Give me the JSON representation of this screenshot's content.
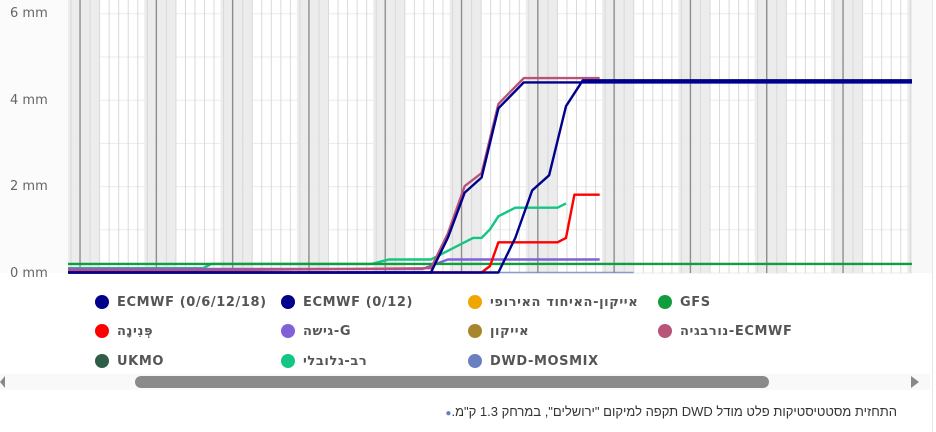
{
  "chart_data": {
    "type": "line",
    "title": "",
    "xlabel": "",
    "ylabel": "",
    "y_unit": "mm",
    "y_ticks": [
      "0 mm",
      "2 mm",
      "4 mm",
      "6 mm"
    ],
    "ylim": [
      0,
      6
    ],
    "grid": true,
    "legend_position": "bottom",
    "x_note": "time axis (hourly), shaded night bands, dark lines at day boundaries; no visible x tick labels",
    "series": [
      {
        "name": "ECMWF (0/6/12/18)",
        "color": "#00008b",
        "points": [
          [
            0,
            0
          ],
          [
            0.51,
            0
          ],
          [
            0.53,
            0.8
          ],
          [
            0.55,
            1.9
          ],
          [
            0.57,
            2.25
          ],
          [
            0.59,
            3.85
          ],
          [
            0.61,
            4.45
          ],
          [
            1.0,
            4.45
          ]
        ]
      },
      {
        "name": "ECMWF (0/12)",
        "color": "#00008b",
        "points": [
          [
            0,
            0
          ],
          [
            0.43,
            0
          ],
          [
            0.45,
            0.8
          ],
          [
            0.47,
            1.85
          ],
          [
            0.49,
            2.2
          ],
          [
            0.51,
            3.8
          ],
          [
            0.54,
            4.4
          ],
          [
            1.0,
            4.4
          ]
        ]
      },
      {
        "name": "אייקון-האיחוד האירופי",
        "color": "#f0a500",
        "points": []
      },
      {
        "name": "GFS",
        "color": "#109d3e",
        "points": [
          [
            0,
            0.2
          ],
          [
            1.0,
            0.2
          ]
        ]
      },
      {
        "name": "פְּנִינָה",
        "color": "#ff0000",
        "points": [
          [
            0,
            0
          ],
          [
            0.49,
            0
          ],
          [
            0.5,
            0.15
          ],
          [
            0.51,
            0.7
          ],
          [
            0.58,
            0.7
          ],
          [
            0.59,
            0.8
          ],
          [
            0.6,
            1.8
          ],
          [
            0.63,
            1.8
          ]
        ]
      },
      {
        "name": "גישה-G",
        "color": "#8061d8",
        "points": [
          [
            0,
            0.08
          ],
          [
            0.36,
            0.08
          ],
          [
            0.42,
            0.08
          ],
          [
            0.45,
            0.3
          ],
          [
            0.63,
            0.3
          ]
        ]
      },
      {
        "name": "אייקון",
        "color": "#a9862d",
        "points": []
      },
      {
        "name": "נורבגיה-ECMWF",
        "color": "#b85478",
        "points": [
          [
            0,
            0.05
          ],
          [
            0.16,
            0.05
          ],
          [
            0.43,
            0.1
          ],
          [
            0.45,
            0.9
          ],
          [
            0.47,
            2.0
          ],
          [
            0.49,
            2.3
          ],
          [
            0.51,
            3.9
          ],
          [
            0.54,
            4.5
          ],
          [
            0.63,
            4.5
          ]
        ]
      },
      {
        "name": "UKMO",
        "color": "#2e5e48",
        "points": []
      },
      {
        "name": "רב-גלובלי",
        "color": "#13c681",
        "points": [
          [
            0,
            0.1
          ],
          [
            0.16,
            0.1
          ],
          [
            0.17,
            0.2
          ],
          [
            0.36,
            0.2
          ],
          [
            0.38,
            0.3
          ],
          [
            0.43,
            0.3
          ],
          [
            0.46,
            0.6
          ],
          [
            0.48,
            0.8
          ],
          [
            0.49,
            0.8
          ],
          [
            0.5,
            1.0
          ],
          [
            0.51,
            1.3
          ],
          [
            0.53,
            1.5
          ],
          [
            0.58,
            1.5
          ],
          [
            0.59,
            1.6
          ]
        ]
      },
      {
        "name": "DWD-MOSMIX",
        "color": "#6a7fc0",
        "points": [
          [
            0,
            0
          ],
          [
            0.67,
            0
          ]
        ]
      }
    ]
  },
  "axis": {
    "y_labels": [
      {
        "text": "6 mm",
        "value": 6
      },
      {
        "text": "4 mm",
        "value": 4
      },
      {
        "text": "2 mm",
        "value": 2
      },
      {
        "text": "0 mm",
        "value": 0
      }
    ]
  },
  "legend": {
    "items": [
      {
        "label": "ECMWF (0/6/12/18)",
        "color": "#00008b"
      },
      {
        "label": "ECMWF (0/12)",
        "color": "#00008b"
      },
      {
        "label": "אייקון-האיחוד האירופי",
        "color": "#f0a500"
      },
      {
        "label": "GFS",
        "color": "#109d3e"
      },
      {
        "label": "פְּנִינָה",
        "color": "#ff0000"
      },
      {
        "label": "גישה-G",
        "color": "#8061d8"
      },
      {
        "label": "אייקון",
        "color": "#a9862d"
      },
      {
        "label": "נורבגיה-ECMWF",
        "color": "#b85478"
      },
      {
        "label": "UKMO",
        "color": "#2e5e48"
      },
      {
        "label": "רב-גלובלי",
        "color": "#13c681"
      },
      {
        "label": "DWD-MOSMIX",
        "color": "#6a7fc0"
      }
    ]
  },
  "footer": {
    "note": "התחזית מסטטיסטיקות פלט מודל DWD תקפה למיקום \"ירושלים\", במרחק 1.3 ק\"מ."
  },
  "colors": {
    "night_band": "#ececec",
    "day_line": "#8c8c8c",
    "grid_line": "#d9d9d9",
    "scroll_thumb": "#8a8a8a"
  }
}
